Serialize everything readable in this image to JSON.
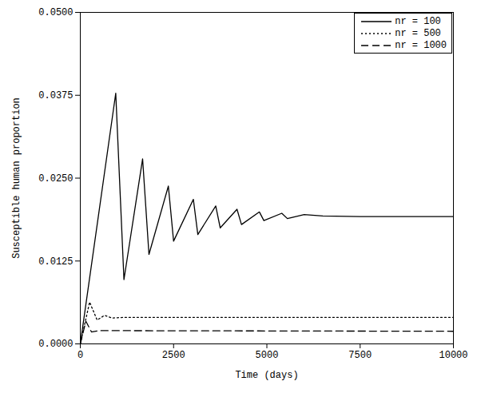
{
  "chart_data": {
    "type": "line",
    "x_label": "Time (days)",
    "y_label": "Susceptible human proportion",
    "xlim": [
      0,
      10000
    ],
    "xticks": [
      0,
      2500,
      5000,
      7500,
      10000
    ],
    "ylim": [
      0,
      0.05
    ],
    "yticks": [
      {
        "value": 0,
        "label": "0.0000"
      },
      0.0125,
      {
        "value": 0.025,
        "label": "0.0250"
      },
      0.0375,
      {
        "value": 0.05,
        "label": "0.0500"
      }
    ],
    "grid": false,
    "legend": "top-right",
    "series": [
      {
        "name": "nr = 100",
        "color": "#000000",
        "line_style": "solid",
        "x": [
          0,
          950,
          1170,
          1670,
          1840,
          2360,
          2500,
          3030,
          3150,
          3630,
          3750,
          4200,
          4320,
          4800,
          4920,
          5400,
          5550,
          6000,
          6500,
          7500,
          10000
        ],
        "values": [
          0,
          0.0378,
          0.0097,
          0.0279,
          0.0135,
          0.0238,
          0.0155,
          0.0218,
          0.0165,
          0.0208,
          0.0175,
          0.0203,
          0.018,
          0.0199,
          0.0186,
          0.0197,
          0.0189,
          0.0195,
          0.0193,
          0.0192,
          0.0192
        ]
      },
      {
        "name": "nr = 500",
        "color": "#000000",
        "line_style": "dotted",
        "x": [
          0,
          250,
          450,
          650,
          850,
          1200,
          10000
        ],
        "values": [
          0,
          0.0063,
          0.0036,
          0.0043,
          0.0039,
          0.004,
          0.004
        ]
      },
      {
        "name": "nr = 1000",
        "color": "#000000",
        "line_style": "dashed",
        "x": [
          0,
          150,
          300,
          500,
          10000
        ],
        "values": [
          0,
          0.0034,
          0.0018,
          0.002,
          0.0019
        ]
      }
    ]
  }
}
